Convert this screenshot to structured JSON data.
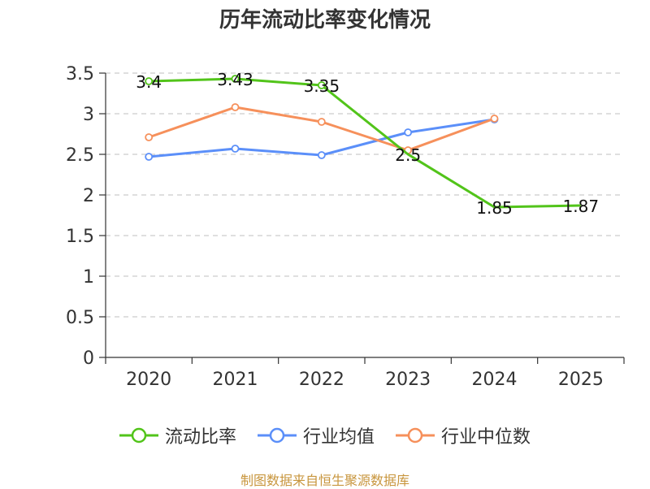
{
  "chart_data": {
    "type": "line",
    "title": "历年流动比率变化情况",
    "categories": [
      "2020",
      "2021",
      "2022",
      "2023",
      "2024",
      "2025"
    ],
    "ylim": [
      0,
      3.5
    ],
    "yticks": [
      0,
      0.5,
      1,
      1.5,
      2,
      2.5,
      3,
      3.5
    ],
    "ytick_labels": [
      "0",
      "0.5",
      "1",
      "1.5",
      "2",
      "2.5",
      "3",
      "3.5"
    ],
    "grid": true,
    "legend_position": "bottom",
    "series": [
      {
        "name": "流动比率",
        "color": "#52c41a",
        "values": [
          3.4,
          3.43,
          3.35,
          2.5,
          1.85,
          1.87
        ],
        "labels": [
          "3.4",
          "3.43",
          "3.35",
          "2.5",
          "1.85",
          "1.87"
        ],
        "markers": [
          true,
          true,
          true,
          false,
          false,
          false
        ]
      },
      {
        "name": "行业均值",
        "color": "#5b8ff9",
        "values": [
          2.47,
          2.57,
          2.49,
          2.77,
          2.93,
          null
        ],
        "markers": [
          true,
          true,
          true,
          true,
          true,
          false
        ]
      },
      {
        "name": "行业中位数",
        "color": "#f6905b",
        "values": [
          2.71,
          3.08,
          2.9,
          2.55,
          2.94,
          null
        ],
        "markers": [
          true,
          true,
          true,
          true,
          true,
          false
        ]
      }
    ]
  },
  "source": "制图数据来自恒生聚源数据库"
}
